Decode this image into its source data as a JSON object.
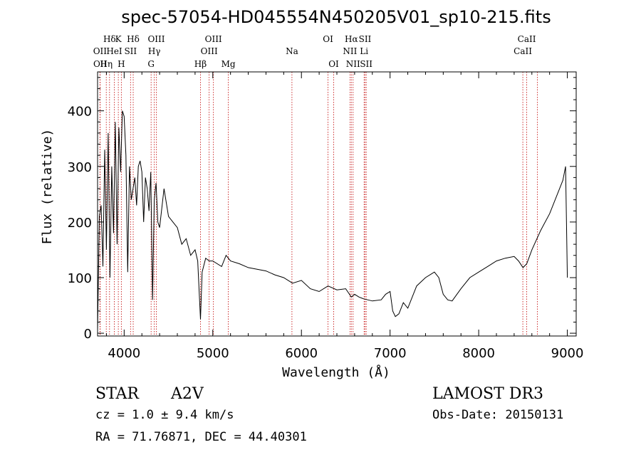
{
  "chart_data": {
    "type": "line",
    "title": "spec-57054-HD045554N450205V01_sp10-215.fits",
    "xlabel": "Wavelength (Å)",
    "ylabel": "Flux (relative)",
    "xlim": [
      3700,
      9100
    ],
    "ylim": [
      -5,
      470
    ],
    "x_ticks": [
      "4000",
      "5000",
      "6000",
      "7000",
      "8000",
      "9000"
    ],
    "y_ticks": [
      "0",
      "100",
      "200",
      "300",
      "400"
    ],
    "grid": false,
    "series": [
      {
        "color": "#000000",
        "x": [
          3700,
          3720,
          3740,
          3760,
          3780,
          3800,
          3820,
          3840,
          3860,
          3880,
          3900,
          3920,
          3940,
          3960,
          3980,
          4000,
          4020,
          4040,
          4060,
          4080,
          4100,
          4120,
          4140,
          4160,
          4180,
          4200,
          4220,
          4240,
          4260,
          4280,
          4300,
          4320,
          4340,
          4360,
          4380,
          4400,
          4450,
          4500,
          4550,
          4600,
          4650,
          4700,
          4750,
          4800,
          4830,
          4861,
          4880,
          4920,
          4960,
          5000,
          5100,
          5150,
          5200,
          5300,
          5400,
          5500,
          5600,
          5700,
          5800,
          5900,
          6000,
          6100,
          6200,
          6300,
          6400,
          6500,
          6563,
          6600,
          6650,
          6700,
          6800,
          6900,
          6950,
          7000,
          7030,
          7060,
          7100,
          7150,
          7200,
          7300,
          7400,
          7500,
          7550,
          7600,
          7650,
          7700,
          7800,
          7900,
          8000,
          8100,
          8200,
          8300,
          8400,
          8450,
          8500,
          8542,
          8600,
          8700,
          8800,
          8900,
          8950,
          8980,
          9000
        ],
        "y": [
          5,
          210,
          230,
          120,
          330,
          150,
          360,
          100,
          300,
          180,
          380,
          160,
          370,
          290,
          400,
          390,
          320,
          110,
          300,
          240,
          260,
          280,
          230,
          300,
          310,
          290,
          200,
          280,
          260,
          220,
          290,
          60,
          240,
          270,
          200,
          190,
          260,
          210,
          200,
          190,
          160,
          170,
          140,
          150,
          130,
          25,
          110,
          135,
          130,
          130,
          120,
          140,
          130,
          125,
          118,
          115,
          112,
          105,
          100,
          90,
          95,
          80,
          75,
          85,
          78,
          80,
          65,
          70,
          65,
          62,
          58,
          60,
          70,
          75,
          40,
          30,
          35,
          55,
          45,
          85,
          100,
          110,
          100,
          70,
          60,
          58,
          80,
          100,
          110,
          120,
          130,
          135,
          138,
          130,
          118,
          125,
          150,
          185,
          215,
          255,
          275,
          300,
          100
        ]
      }
    ],
    "lines": [
      {
        "label": "Hδ",
        "wl": 3835
      },
      {
        "label": "K",
        "wl": 3934
      },
      {
        "label": "Hδ",
        "wl": 4102
      },
      {
        "label": "OIII",
        "wl": 4363
      },
      {
        "label": "OIII",
        "wl": 5007
      },
      {
        "label": "OI",
        "wl": 6300
      },
      {
        "label": "Hα",
        "wl": 6563
      },
      {
        "label": "SII",
        "wl": 6717
      },
      {
        "label": "CaII",
        "wl": 8542
      },
      {
        "label": "OII",
        "wl": 3727
      },
      {
        "label": "HeI",
        "wl": 3889
      },
      {
        "label": "SII",
        "wl": 4072
      },
      {
        "label": "Hγ",
        "wl": 4340
      },
      {
        "label": "OIII",
        "wl": 4959
      },
      {
        "label": "Na",
        "wl": 5893
      },
      {
        "label": "NII",
        "wl": 6548
      },
      {
        "label": "Li",
        "wl": 6707
      },
      {
        "label": "CaII",
        "wl": 8498
      },
      {
        "label": "OII",
        "wl": 3729
      },
      {
        "label": "Hη",
        "wl": 3798
      },
      {
        "label": "H",
        "wl": 3968
      },
      {
        "label": "G",
        "wl": 4304
      },
      {
        "label": "Hβ",
        "wl": 4861
      },
      {
        "label": "Mg",
        "wl": 5175
      },
      {
        "label": "OI",
        "wl": 6364
      },
      {
        "label": "NII",
        "wl": 6583
      },
      {
        "label": "SII",
        "wl": 6731
      },
      {
        "label": "CaII",
        "wl": 8662
      }
    ]
  },
  "info": {
    "class_label": "STAR",
    "subclass": "A2V",
    "survey": "LAMOST DR3",
    "cz": "cz = 1.0 ± 9.4 km/s",
    "obs_date": "Obs-Date: 20150131",
    "radec": "RA = 71.76871, DEC = 44.40301"
  }
}
